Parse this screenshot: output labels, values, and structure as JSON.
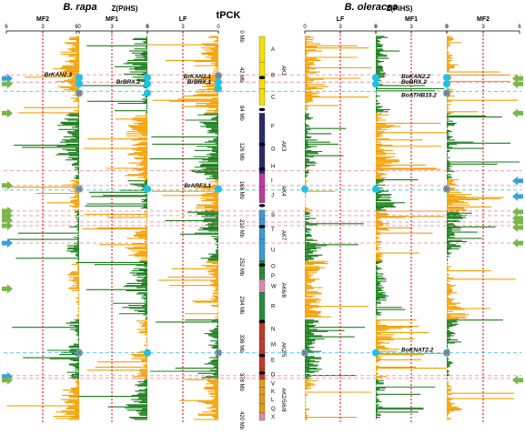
{
  "chart_data": {
    "type": "bar",
    "title_left": "B. rapa",
    "title_right": "B. oleracea",
    "center_label": "tPCK",
    "stat_label": "Z(PiHS)",
    "tracks_left": [
      {
        "name": "MF2",
        "ticks": [
          "6",
          "3",
          "0"
        ]
      },
      {
        "name": "MF1",
        "ticks": [
          "6",
          "3",
          "0"
        ]
      },
      {
        "name": "LF",
        "ticks": [
          "6",
          "3",
          "0"
        ]
      }
    ],
    "tracks_right": [
      {
        "name": "LF",
        "ticks": [
          "0",
          "3",
          "6"
        ]
      },
      {
        "name": "MF1",
        "ticks": [
          "0",
          "3",
          "6"
        ]
      },
      {
        "name": "MF2",
        "ticks": [
          "0",
          "3",
          "6"
        ]
      }
    ],
    "threshold": 3,
    "xlim": [
      0,
      6
    ],
    "ylim_mb": [
      0,
      420
    ],
    "position_ticks": [
      "0 Mb",
      "42 Mb",
      "84 Mb",
      "126 Mb",
      "168 Mb",
      "210 Mb",
      "252 Mb",
      "294 Mb",
      "336 Mb",
      "378 Mb",
      "420 Mb"
    ],
    "chromosomes": [
      {
        "name": "AK1",
        "start": 0,
        "end": 75,
        "color": "#f5e000"
      },
      {
        "name": "AK3",
        "start": 84,
        "end": 156,
        "color": "#2a2a6e"
      },
      {
        "name": "AK4",
        "start": 156,
        "end": 182,
        "color": "#c2389a"
      },
      {
        "name": "AK7",
        "start": 190,
        "end": 245,
        "color": "#3a9ad9"
      },
      {
        "name": "AK6/8",
        "start": 245,
        "end": 310,
        "color": "#2b8a3e"
      },
      {
        "name": "AK2/5",
        "start": 310,
        "end": 375,
        "color": "#c0392b"
      },
      {
        "name": "AK2/5/6/8",
        "start": 375,
        "end": 420,
        "color": "#e29b1a"
      }
    ],
    "blocks": [
      {
        "name": "A",
        "start": 0,
        "end": 28,
        "color": "#f5e000"
      },
      {
        "name": "B",
        "start": 28,
        "end": 57,
        "color": "#f5e000"
      },
      {
        "name": "C",
        "start": 57,
        "end": 75,
        "color": "#f5e000"
      },
      {
        "name": "F",
        "start": 84,
        "end": 112,
        "color": "#2a2a6e"
      },
      {
        "name": "G",
        "start": 112,
        "end": 134,
        "color": "#2a2a6e"
      },
      {
        "name": "H",
        "start": 134,
        "end": 150,
        "color": "#2a2a6e"
      },
      {
        "name": "I",
        "start": 150,
        "end": 165,
        "color": "#c2389a"
      },
      {
        "name": "J",
        "start": 165,
        "end": 182,
        "color": "#c2389a"
      },
      {
        "name": "S",
        "start": 190,
        "end": 200,
        "color": "#3a9ad9"
      },
      {
        "name": "T",
        "start": 200,
        "end": 222,
        "color": "#3a9ad9"
      },
      {
        "name": "U",
        "start": 222,
        "end": 245,
        "color": "#3a9ad9"
      },
      {
        "name": "O",
        "start": 245,
        "end": 258,
        "color": "#2b8a3e"
      },
      {
        "name": "P",
        "start": 258,
        "end": 266,
        "color": "#2b8a3e"
      },
      {
        "name": "W",
        "start": 266,
        "end": 280,
        "color": "#d98bb0"
      },
      {
        "name": "R",
        "start": 280,
        "end": 310,
        "color": "#2b8a3e"
      },
      {
        "name": "N",
        "start": 310,
        "end": 330,
        "color": "#c0392b"
      },
      {
        "name": "M",
        "start": 330,
        "end": 344,
        "color": "#c0392b"
      },
      {
        "name": "E",
        "start": 344,
        "end": 364,
        "color": "#c0392b"
      },
      {
        "name": "D",
        "start": 364,
        "end": 375,
        "color": "#c0392b"
      },
      {
        "name": "V",
        "start": 375,
        "end": 384,
        "color": "#e29b1a"
      },
      {
        "name": "K",
        "start": 384,
        "end": 392,
        "color": "#e29b1a"
      },
      {
        "name": "L",
        "start": 392,
        "end": 402,
        "color": "#e29b1a"
      },
      {
        "name": "Q",
        "start": 402,
        "end": 412,
        "color": "#e29b1a"
      },
      {
        "name": "X",
        "start": 412,
        "end": 420,
        "color": "#d98bb0"
      }
    ],
    "centromeres_mb": [
      45,
      80,
      118,
      145,
      185,
      208,
      250,
      312,
      349,
      368
    ],
    "cyan_lines_mb": [
      60,
      168,
      346
    ],
    "pink_lines_mb": [
      42,
      50,
      147,
      163,
      191,
      196,
      203,
      207,
      226,
      371,
      374
    ],
    "genes": [
      {
        "label": "BrKAN2.3",
        "side": "left",
        "track": 0,
        "mb": 42
      },
      {
        "label": "BrBRX.2",
        "side": "left",
        "track": 1,
        "mb": 50
      },
      {
        "label": "BrKAN2.1",
        "side": "left",
        "track": 2,
        "mb": 44
      },
      {
        "label": "BrBRX.1",
        "side": "left",
        "track": 2,
        "mb": 50
      },
      {
        "label": "BrARF3.1",
        "side": "left",
        "track": 2,
        "mb": 163
      },
      {
        "label": "BoKAN2.2",
        "side": "right",
        "track": 1,
        "mb": 44
      },
      {
        "label": "BoBRX.2",
        "side": "right",
        "track": 1,
        "mb": 50
      },
      {
        "label": "BoATHB15.2",
        "side": "right",
        "track": 1,
        "mb": 64
      },
      {
        "label": "BoKNAT2.2",
        "side": "right",
        "track": 1,
        "mb": 343
      }
    ],
    "markers": [
      {
        "side": "left",
        "track": 0,
        "mb": 45,
        "type": "dot"
      },
      {
        "side": "left",
        "track": 0,
        "mb": 52,
        "type": "dot"
      },
      {
        "side": "left",
        "track": 0,
        "mb": 62,
        "type": "cross"
      },
      {
        "side": "left",
        "track": 0,
        "mb": 167,
        "type": "cross"
      },
      {
        "side": "left",
        "track": 0,
        "mb": 346,
        "type": "cross"
      },
      {
        "side": "left",
        "track": 1,
        "mb": 45,
        "type": "dot"
      },
      {
        "side": "left",
        "track": 1,
        "mb": 52,
        "type": "dot"
      },
      {
        "side": "left",
        "track": 1,
        "mb": 62,
        "type": "dot"
      },
      {
        "side": "left",
        "track": 1,
        "mb": 167,
        "type": "dot"
      },
      {
        "side": "left",
        "track": 1,
        "mb": 346,
        "type": "dot"
      },
      {
        "side": "left",
        "track": 2,
        "mb": 43,
        "type": "cross"
      },
      {
        "side": "left",
        "track": 2,
        "mb": 50,
        "type": "dot"
      },
      {
        "side": "left",
        "track": 2,
        "mb": 57,
        "type": "dot"
      },
      {
        "side": "left",
        "track": 2,
        "mb": 167,
        "type": "dot"
      },
      {
        "side": "left",
        "track": 2,
        "mb": 346,
        "type": "cross"
      },
      {
        "side": "right",
        "track": 0,
        "mb": 167,
        "type": "dot"
      },
      {
        "side": "right",
        "track": 0,
        "mb": 346,
        "type": "cross"
      },
      {
        "side": "right",
        "track": 1,
        "mb": 45,
        "type": "dot"
      },
      {
        "side": "right",
        "track": 1,
        "mb": 52,
        "type": "dot"
      },
      {
        "side": "right",
        "track": 1,
        "mb": 167,
        "type": "dot"
      },
      {
        "side": "right",
        "track": 1,
        "mb": 346,
        "type": "dot"
      },
      {
        "side": "right",
        "track": 2,
        "mb": 45,
        "type": "dot"
      },
      {
        "side": "right",
        "track": 2,
        "mb": 52,
        "type": "dot"
      },
      {
        "side": "right",
        "track": 2,
        "mb": 62,
        "type": "cross"
      },
      {
        "side": "right",
        "track": 2,
        "mb": 167,
        "type": "cross"
      },
      {
        "side": "right",
        "track": 2,
        "mb": 346,
        "type": "cross"
      }
    ],
    "arrows_left": [
      {
        "mb": 46,
        "color": "#3aa0e0"
      },
      {
        "mb": 52,
        "color": "#7ab648"
      },
      {
        "mb": 84,
        "color": "#7ab648"
      },
      {
        "mb": 163,
        "color": "#7ab648"
      },
      {
        "mb": 191,
        "color": "#7ab648"
      },
      {
        "mb": 196,
        "color": "#7ab648"
      },
      {
        "mb": 201,
        "color": "#7ab648"
      },
      {
        "mb": 207,
        "color": "#7ab648"
      },
      {
        "mb": 226,
        "color": "#3aa0e0"
      },
      {
        "mb": 276,
        "color": "#7ab648"
      },
      {
        "mb": 372,
        "color": "#3aa0e0"
      },
      {
        "mb": 376,
        "color": "#7ab648"
      }
    ],
    "arrows_right": [
      {
        "mb": 46,
        "color": "#7ab648"
      },
      {
        "mb": 52,
        "color": "#7ab648"
      },
      {
        "mb": 84,
        "color": "#7ab648"
      },
      {
        "mb": 158,
        "color": "#3aa0e0"
      },
      {
        "mb": 175,
        "color": "#3aa0e0"
      },
      {
        "mb": 192,
        "color": "#7ab648"
      },
      {
        "mb": 199,
        "color": "#7ab648"
      },
      {
        "mb": 203,
        "color": "#7ab648"
      },
      {
        "mb": 209,
        "color": "#7ab648"
      },
      {
        "mb": 226,
        "color": "#7ab648"
      },
      {
        "mb": 376,
        "color": "#7ab648"
      }
    ],
    "colors": {
      "orange": "#f5a000",
      "green": "#1b7d1b",
      "threshold": "#e00000",
      "cyan_line": "#3ec8e0",
      "pink_line": "#ee8ea0",
      "marker": "#1ec1e8",
      "cross": "#e05050"
    }
  }
}
